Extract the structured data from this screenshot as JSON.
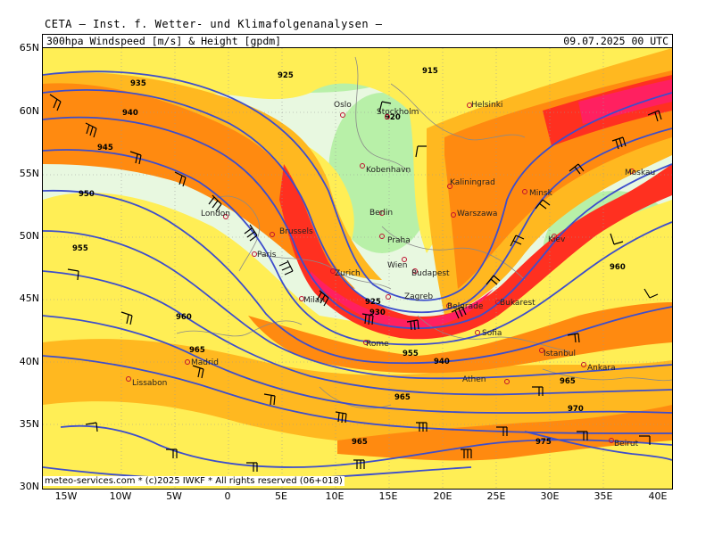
{
  "app_title": "CETA — Inst. f. Wetter- und Klimafolgenanalysen —",
  "product": "300hpa Windspeed [m/s] & Height [gpdm]",
  "valid_time": "09.07.2025 00 UTC",
  "copyright": "meteo-services.com * (c)2025 IWKF * All rights reserved (06+018)",
  "lat_labels": [
    "65N",
    "60N",
    "55N",
    "50N",
    "45N",
    "40N",
    "35N",
    "30N"
  ],
  "lon_labels": [
    "15W",
    "10W",
    "5W",
    "0",
    "5E",
    "10E",
    "15E",
    "20E",
    "25E",
    "30E",
    "35E",
    "40E"
  ],
  "colors": {
    "calm": "#e8f8e0",
    "light_green": "#b8f0a8",
    "yellow": "#ffee55",
    "orange_light": "#ffb820",
    "orange": "#ff8a10",
    "red": "#ff3020",
    "jet_core": "#ff2060",
    "contour": "#3d4ecc",
    "borders": "#8a8a8a"
  },
  "height_contours": [
    "915",
    "920",
    "925",
    "935",
    "940",
    "945",
    "950",
    "955",
    "960",
    "965",
    "965",
    "965",
    "970",
    "975",
    "925",
    "930",
    "940",
    "955",
    "960",
    "965"
  ],
  "cities": [
    "Oslo",
    "Stockholm",
    "Helsinki",
    "Kobenhavn",
    "Kaliningrad",
    "Minsk",
    "Moskau",
    "London",
    "Berlin",
    "Warszawa",
    "Brussels",
    "Praha",
    "Kiev",
    "Paris",
    "Wien",
    "Budapest",
    "Zurich",
    "Zagreb",
    "Belgrade",
    "Bukarest",
    "Milan",
    "Rome",
    "Sofia",
    "Madrid",
    "Istanbul",
    "Ankara",
    "Lissabon",
    "Athen",
    "Beirut"
  ]
}
